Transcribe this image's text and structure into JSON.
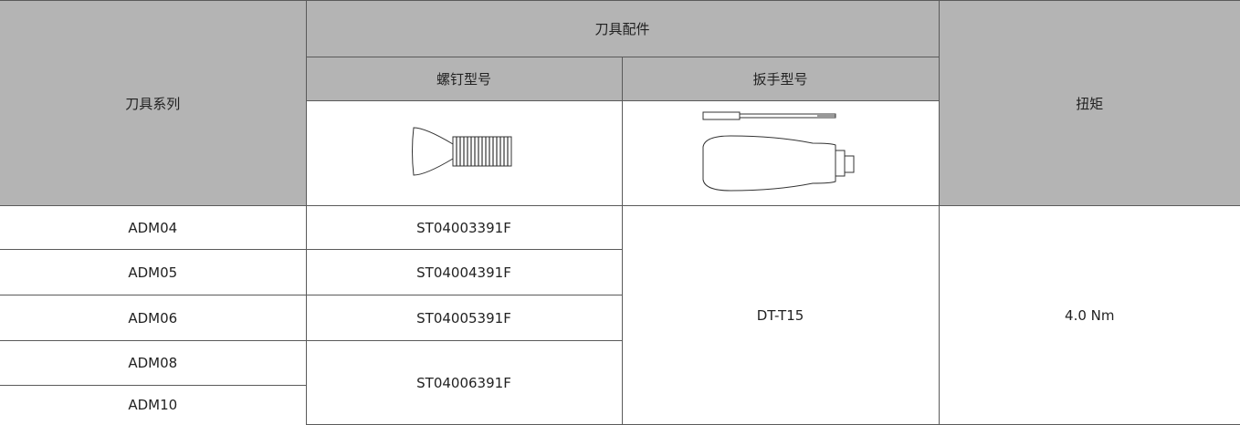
{
  "table": {
    "header": {
      "series": "刀具系列",
      "accessories": "刀具配件",
      "screw": "螺钉型号",
      "wrench": "扳手型号",
      "torque": "扭矩"
    },
    "rows": [
      {
        "series": "ADM04",
        "screw": "ST04003391F"
      },
      {
        "series": "ADM05",
        "screw": "ST04004391F"
      },
      {
        "series": "ADM06",
        "screw": "ST04005391F"
      },
      {
        "series": "ADM08",
        "screw": "ST04006391F"
      },
      {
        "series": "ADM10"
      }
    ],
    "wrench": "DT-T15",
    "torque": "4.0 Nm"
  }
}
